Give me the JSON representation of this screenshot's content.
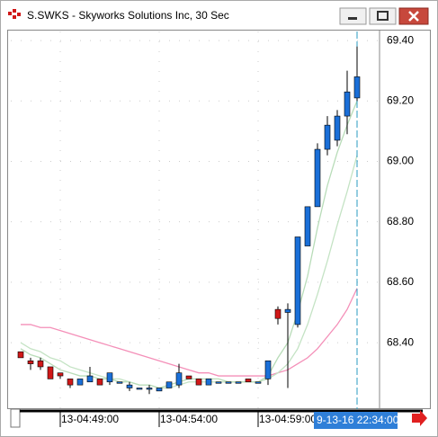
{
  "chart_data": {
    "type": "candlestick",
    "title": "S.SWKS - Skyworks Solutions Inc, 30 Sec",
    "categories": [
      null,
      null,
      null,
      null,
      "13-04:49:00",
      null,
      null,
      null,
      null,
      null,
      null,
      null,
      null,
      null,
      "13-04:54:00",
      null,
      null,
      null,
      null,
      null,
      null,
      null,
      null,
      null,
      "13-04:59:00",
      null,
      null,
      null,
      null,
      null,
      null,
      null,
      null,
      null,
      null
    ],
    "open": [
      68.37,
      68.34,
      68.34,
      68.32,
      68.3,
      68.28,
      68.26,
      68.27,
      68.28,
      68.27,
      68.27,
      68.25,
      68.25,
      68.25,
      68.24,
      68.25,
      68.26,
      68.29,
      68.28,
      68.26,
      68.27,
      68.27,
      68.27,
      68.28,
      68.27,
      68.28,
      68.51,
      68.5,
      68.46,
      68.72,
      68.85,
      69.04,
      69.07,
      69.15,
      69.21
    ],
    "high": [
      68.37,
      68.35,
      68.35,
      68.32,
      68.3,
      68.28,
      68.28,
      68.32,
      68.28,
      68.3,
      68.27,
      68.27,
      68.25,
      68.26,
      68.25,
      68.27,
      68.33,
      68.29,
      68.28,
      68.28,
      68.27,
      68.27,
      68.27,
      68.28,
      68.27,
      68.34,
      68.52,
      68.53,
      68.75,
      68.85,
      69.06,
      69.15,
      69.17,
      69.3,
      69.38
    ],
    "low": [
      68.35,
      68.31,
      68.31,
      68.28,
      68.28,
      68.25,
      68.26,
      68.27,
      68.26,
      68.26,
      68.27,
      68.24,
      68.25,
      68.23,
      68.24,
      68.25,
      68.25,
      68.28,
      68.26,
      68.26,
      68.27,
      68.27,
      68.27,
      68.27,
      68.27,
      68.26,
      68.46,
      68.25,
      68.45,
      68.72,
      68.85,
      69.02,
      69.05,
      69.09,
      69.2
    ],
    "close": [
      68.35,
      68.33,
      68.32,
      68.28,
      68.29,
      68.26,
      68.28,
      68.29,
      68.26,
      68.3,
      68.27,
      68.26,
      68.25,
      68.25,
      68.25,
      68.27,
      68.3,
      68.28,
      68.26,
      68.28,
      68.27,
      68.27,
      68.27,
      68.27,
      68.27,
      68.34,
      68.48,
      68.51,
      68.75,
      68.85,
      69.04,
      69.12,
      69.15,
      69.23,
      69.28
    ],
    "up_color": "#1a6fd8",
    "down_color": "#d01818",
    "overlays": [
      {
        "color": "#f48fb8",
        "values": [
          68.46,
          68.46,
          68.45,
          68.45,
          68.44,
          68.43,
          68.42,
          68.41,
          68.4,
          68.39,
          68.38,
          68.37,
          68.36,
          68.35,
          68.34,
          68.33,
          68.32,
          68.31,
          68.3,
          68.3,
          68.29,
          68.29,
          68.29,
          68.29,
          68.29,
          68.29,
          68.3,
          68.31,
          68.33,
          68.35,
          68.38,
          68.42,
          68.46,
          68.51,
          68.58
        ]
      },
      {
        "color": "#c4e3c4",
        "values": [
          68.4,
          68.38,
          68.37,
          68.35,
          68.34,
          68.32,
          68.31,
          68.3,
          68.29,
          68.28,
          68.28,
          68.27,
          68.26,
          68.26,
          68.25,
          68.25,
          68.26,
          68.27,
          68.27,
          68.27,
          68.27,
          68.27,
          68.27,
          68.27,
          68.27,
          68.28,
          68.3,
          68.33,
          68.38,
          68.46,
          68.56,
          68.67,
          68.79,
          68.9,
          69.02
        ]
      },
      {
        "color": "#b8dcb8",
        "values": [
          68.38,
          68.36,
          68.35,
          68.33,
          68.31,
          68.3,
          68.29,
          68.29,
          68.28,
          68.28,
          68.27,
          68.27,
          68.26,
          68.26,
          68.25,
          68.26,
          68.27,
          68.28,
          68.28,
          68.28,
          68.28,
          68.27,
          68.27,
          68.27,
          68.27,
          68.29,
          68.35,
          68.4,
          68.5,
          68.62,
          68.78,
          68.92,
          69.03,
          69.12,
          69.2
        ]
      }
    ],
    "ylim": [
      68.18,
      69.43
    ],
    "yticks": [
      {
        "value": 68.4,
        "label": "68.40"
      },
      {
        "value": 68.6,
        "label": "68.60"
      },
      {
        "value": 68.8,
        "label": "68.80"
      },
      {
        "value": 69,
        "label": "69.00"
      },
      {
        "value": 69.2,
        "label": "69.20"
      },
      {
        "value": 69.4,
        "label": "69.40"
      }
    ],
    "grid": true,
    "cursor_label": "9-13-16 22:34:00"
  }
}
